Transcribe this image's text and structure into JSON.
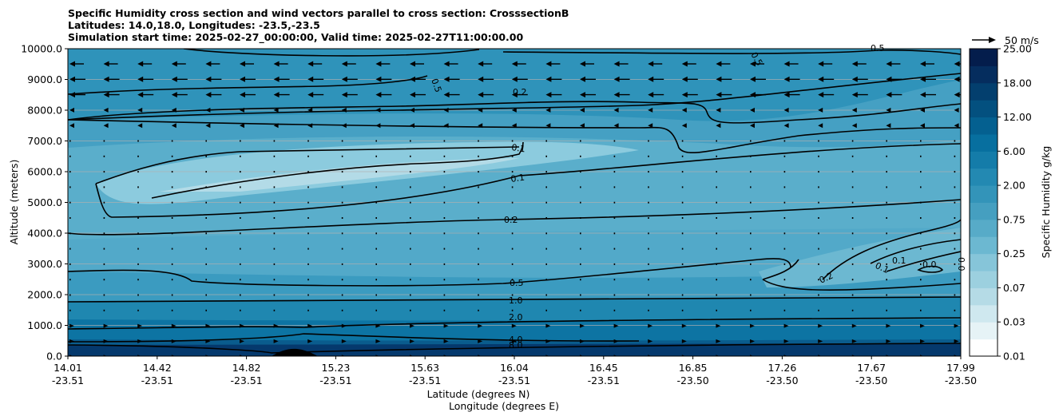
{
  "chart_data": {
    "type": "heatmap",
    "title": [
      "Specific Humidity cross section and wind vectors parallel to cross section: CrosssectionB",
      "Latitudes: 14.0,18.0, Longitudes: -23.5,-23.5",
      "Simulation start time: 2025-02-27_00:00:00, Valid time: 2025-02-27T11:00:00.00"
    ],
    "ylabel": "Altitude (meters)",
    "xlabel_lat": "Latitude (degrees N)",
    "xlabel_lon": "Longitude (degrees E)",
    "ylim": [
      0,
      10000
    ],
    "y_ticks": [
      "0.0",
      "1000.0",
      "2000.0",
      "3000.0",
      "4000.0",
      "5000.0",
      "6000.0",
      "7000.0",
      "8000.0",
      "9000.0",
      "10000.0"
    ],
    "y_tick_values": [
      0,
      1000,
      2000,
      3000,
      4000,
      5000,
      6000,
      7000,
      8000,
      9000,
      10000
    ],
    "x_ticks_lat": [
      "14.01",
      "14.42",
      "14.82",
      "15.23",
      "15.63",
      "16.04",
      "16.45",
      "16.85",
      "17.26",
      "17.67",
      "17.99"
    ],
    "x_ticks_lon": [
      "-23.51",
      "-23.51",
      "-23.51",
      "-23.51",
      "-23.51",
      "-23.51",
      "-23.51",
      "-23.50",
      "-23.50",
      "-23.50",
      "-23.50"
    ],
    "grid": "horizontal",
    "colorbar": {
      "label": "Specific Humidity g/kg",
      "ticks": [
        "0.01",
        "0.03",
        "0.07",
        "0.25",
        "0.75",
        "2.00",
        "6.00",
        "12.00",
        "18.00",
        "25.00"
      ],
      "colors": [
        "#ffffff",
        "#e6f3f6",
        "#cfe8ef",
        "#b5dbe6",
        "#9cd0df",
        "#86c5d9",
        "#6cb8d1",
        "#57abc8",
        "#459fc0",
        "#3394b9",
        "#2389b2",
        "#147ca9",
        "#076f9f",
        "#046090",
        "#03507f",
        "#033f6e",
        "#052d5e",
        "#041d4c"
      ]
    },
    "quiver_key": "50 m/s",
    "contour_labels": [
      "0.5",
      "0.2",
      "0.1",
      "0.1",
      "0.2",
      "0.5",
      "1.0",
      "2.0",
      "4.0",
      "8.0",
      "0.2",
      "0.1",
      "0.1",
      "0.0",
      "0.0",
      "0.5",
      "0.5"
    ]
  }
}
